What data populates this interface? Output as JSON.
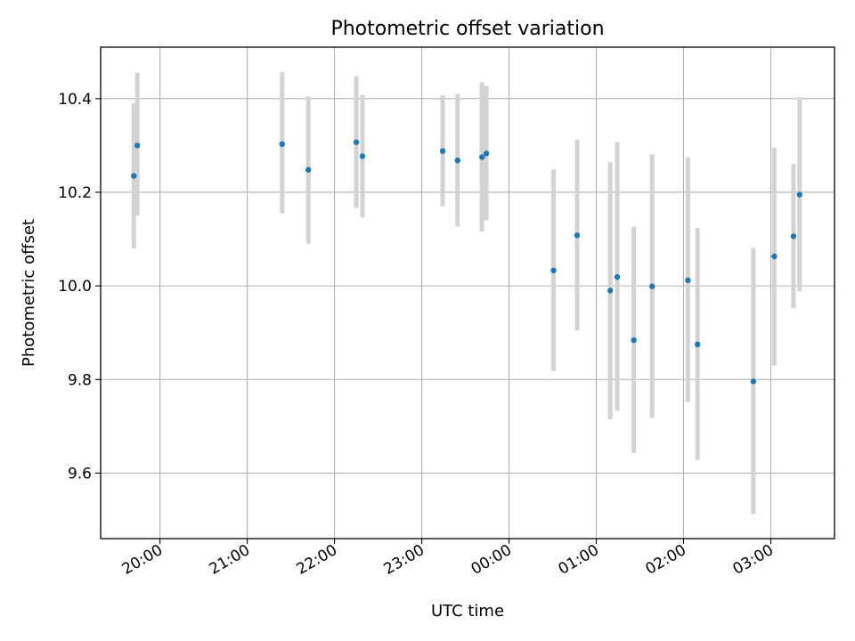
{
  "chart_data": {
    "type": "scatter",
    "title": "Photometric offset variation",
    "xlabel": "UTC time",
    "ylabel": "Photometric offset",
    "x_tick_labels": [
      "20:00",
      "21:00",
      "22:00",
      "23:00",
      "00:00",
      "01:00",
      "02:00",
      "03:00"
    ],
    "x_tick_hours": [
      20,
      21,
      22,
      23,
      24,
      25,
      26,
      27
    ],
    "y_ticks": [
      9.6,
      9.8,
      10.0,
      10.2,
      10.4
    ],
    "y_tick_labels": [
      "9.6",
      "9.8",
      "10.0",
      "10.2",
      "10.4"
    ],
    "xlim_hours": [
      19.32,
      27.73
    ],
    "ylim": [
      9.46,
      10.51
    ],
    "grid": true,
    "marker_color": "#1f77b4",
    "errorbar_color": "#d3d3d3",
    "points": [
      {
        "t": "19:42",
        "hour": 19.7,
        "y": 10.235,
        "lo": 10.08,
        "hi": 10.39
      },
      {
        "t": "19:44",
        "hour": 19.74,
        "y": 10.3,
        "lo": 10.15,
        "hi": 10.455
      },
      {
        "t": "21:24",
        "hour": 21.4,
        "y": 10.303,
        "lo": 10.155,
        "hi": 10.457
      },
      {
        "t": "21:42",
        "hour": 21.7,
        "y": 10.248,
        "lo": 10.09,
        "hi": 10.405
      },
      {
        "t": "22:15",
        "hour": 22.25,
        "y": 10.307,
        "lo": 10.167,
        "hi": 10.448
      },
      {
        "t": "22:19",
        "hour": 22.32,
        "y": 10.277,
        "lo": 10.146,
        "hi": 10.408
      },
      {
        "t": "23:14",
        "hour": 23.24,
        "y": 10.288,
        "lo": 10.17,
        "hi": 10.407
      },
      {
        "t": "23:25",
        "hour": 23.41,
        "y": 10.268,
        "lo": 10.127,
        "hi": 10.41
      },
      {
        "t": "23:41",
        "hour": 23.69,
        "y": 10.275,
        "lo": 10.116,
        "hi": 10.435
      },
      {
        "t": "23:44",
        "hour": 23.74,
        "y": 10.283,
        "lo": 10.14,
        "hi": 10.427
      },
      {
        "t": "00:30",
        "hour": 24.51,
        "y": 10.033,
        "lo": 9.818,
        "hi": 10.249
      },
      {
        "t": "00:47",
        "hour": 24.78,
        "y": 10.108,
        "lo": 9.905,
        "hi": 10.313
      },
      {
        "t": "01:10",
        "hour": 25.16,
        "y": 9.99,
        "lo": 9.715,
        "hi": 10.265
      },
      {
        "t": "01:14",
        "hour": 25.24,
        "y": 10.019,
        "lo": 9.733,
        "hi": 10.307
      },
      {
        "t": "01:26",
        "hour": 25.43,
        "y": 9.884,
        "lo": 9.643,
        "hi": 10.126
      },
      {
        "t": "01:38",
        "hour": 25.64,
        "y": 9.999,
        "lo": 9.718,
        "hi": 10.281
      },
      {
        "t": "02:03",
        "hour": 26.05,
        "y": 10.012,
        "lo": 9.752,
        "hi": 10.275
      },
      {
        "t": "02:10",
        "hour": 26.16,
        "y": 9.875,
        "lo": 9.628,
        "hi": 10.124
      },
      {
        "t": "02:48",
        "hour": 26.8,
        "y": 9.796,
        "lo": 9.512,
        "hi": 10.081
      },
      {
        "t": "03:03",
        "hour": 27.04,
        "y": 10.063,
        "lo": 9.83,
        "hi": 10.295
      },
      {
        "t": "03:16",
        "hour": 27.26,
        "y": 10.106,
        "lo": 9.953,
        "hi": 10.26
      },
      {
        "t": "03:20",
        "hour": 27.33,
        "y": 10.195,
        "lo": 9.988,
        "hi": 10.403
      }
    ]
  }
}
